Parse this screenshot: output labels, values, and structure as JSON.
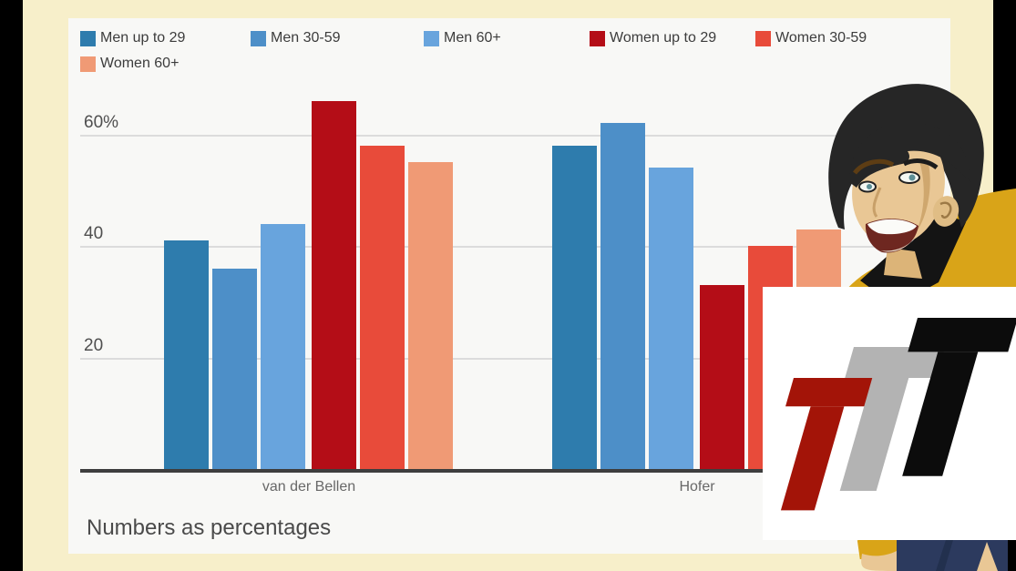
{
  "chart_data": {
    "type": "bar",
    "categories": [
      "van der Bellen",
      "Hofer"
    ],
    "series": [
      {
        "name": "Men up to 29",
        "color": "#2e7cad",
        "values": [
          41,
          58
        ]
      },
      {
        "name": "Men 30-59",
        "color": "#4d8fc8",
        "values": [
          36,
          62
        ]
      },
      {
        "name": "Men 60+",
        "color": "#68a4dd",
        "values": [
          44,
          54
        ]
      },
      {
        "name": "Women up to 29",
        "color": "#b40d17",
        "values": [
          66,
          33
        ]
      },
      {
        "name": "Women 30-59",
        "color": "#e84b3a",
        "values": [
          58,
          40
        ]
      },
      {
        "name": "Women 60+",
        "color": "#f09a75",
        "values": [
          55,
          43
        ]
      }
    ],
    "yticks": [
      {
        "label": "60%",
        "value": 60
      },
      {
        "label": "40",
        "value": 40
      },
      {
        "label": "20",
        "value": 20
      }
    ],
    "ylim": [
      0,
      70
    ],
    "grid": true,
    "legend_position": "top",
    "caption": "Numbers as percentages"
  },
  "watermark": {
    "text": "TTT",
    "letter_colors": [
      "#a31408",
      "#b3b3b3",
      "#0c0c0c"
    ],
    "background": "#ffffff"
  },
  "colors": {
    "frame": "#000000",
    "mat": "#f7efca",
    "panel": "#f8f8f6",
    "axis": "#3e3e3e",
    "gridline": "#dcdcdc"
  },
  "character": {
    "hair": "#262626",
    "skin": "#e9c795",
    "shirt": "#d9a418",
    "collar": "#141414",
    "pants": "#2c3a5e"
  }
}
